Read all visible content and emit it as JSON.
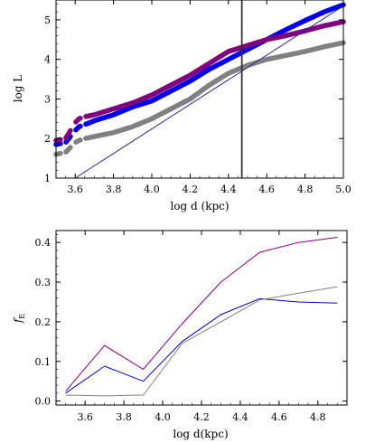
{
  "chart_data": [
    {
      "type": "scatter",
      "xlabel": "log d (kpc)",
      "ylabel": "log L",
      "xlim": [
        3.5,
        5.0
      ],
      "ylim": [
        1.0,
        5.5
      ],
      "xticks": [
        "3.6",
        "3.8",
        "4.0",
        "4.2",
        "4.4",
        "4.6",
        "4.8",
        "5.0"
      ],
      "yticks": [
        "1",
        "2",
        "3",
        "4",
        "5"
      ],
      "colors": {
        "purple": "#800080",
        "blue": "#0000ee",
        "gray": "#808080",
        "line": "#2a2a9a",
        "vline": "#333333"
      },
      "vertical_line_x": 4.47,
      "reference_line": {
        "x": [
          3.6,
          5.0
        ],
        "y": [
          1.0,
          5.35
        ]
      },
      "series": [
        {
          "color": "purple",
          "x": [
            3.5,
            3.55,
            3.6,
            3.62,
            3.65,
            3.7,
            3.8,
            3.9,
            4.0,
            4.1,
            4.2,
            4.3,
            4.4,
            4.5,
            4.6,
            4.7,
            4.8,
            4.9,
            5.0
          ],
          "y": [
            1.95,
            2.0,
            2.4,
            2.5,
            2.55,
            2.6,
            2.75,
            2.9,
            3.1,
            3.35,
            3.6,
            3.9,
            4.2,
            4.35,
            4.5,
            4.6,
            4.72,
            4.85,
            4.95
          ]
        },
        {
          "color": "blue",
          "x": [
            3.5,
            3.55,
            3.6,
            3.62,
            3.65,
            3.7,
            3.8,
            3.9,
            4.0,
            4.1,
            4.2,
            4.3,
            4.4,
            4.5,
            4.6,
            4.7,
            4.8,
            4.9,
            5.0
          ],
          "y": [
            1.85,
            1.9,
            2.2,
            2.3,
            2.35,
            2.45,
            2.6,
            2.8,
            2.95,
            3.2,
            3.45,
            3.75,
            4.0,
            4.25,
            4.5,
            4.75,
            4.98,
            5.2,
            5.38
          ]
        },
        {
          "color": "gray",
          "x": [
            3.5,
            3.55,
            3.6,
            3.62,
            3.65,
            3.7,
            3.8,
            3.9,
            4.0,
            4.1,
            4.2,
            4.3,
            4.4,
            4.5,
            4.6,
            4.7,
            4.8,
            4.9,
            5.0
          ],
          "y": [
            1.6,
            1.65,
            1.9,
            1.95,
            2.0,
            2.05,
            2.15,
            2.3,
            2.5,
            2.75,
            3.0,
            3.35,
            3.65,
            3.85,
            4.0,
            4.1,
            4.2,
            4.32,
            4.42
          ]
        }
      ]
    },
    {
      "type": "line",
      "xlabel": "log d(kpc)",
      "ylabel": "f",
      "ylabel_subscript": "E",
      "xlim": [
        3.45,
        4.95
      ],
      "ylim": [
        -0.01,
        0.43
      ],
      "xticks": [
        "3.6",
        "3.8",
        "4.0",
        "4.2",
        "4.4",
        "4.6",
        "4.8"
      ],
      "yticks": [
        "0.0",
        "0.1",
        "0.2",
        "0.3",
        "0.4"
      ],
      "x": [
        3.5,
        3.7,
        3.9,
        4.1,
        4.3,
        4.5,
        4.7,
        4.9
      ],
      "series": [
        {
          "color": "#800080",
          "values": [
            0.025,
            0.14,
            0.08,
            0.195,
            0.3,
            0.375,
            0.4,
            0.413
          ]
        },
        {
          "color": "#0000cc",
          "values": [
            0.02,
            0.088,
            0.05,
            0.15,
            0.218,
            0.258,
            0.25,
            0.247
          ]
        },
        {
          "color": "#808080",
          "values": [
            0.015,
            0.013,
            0.015,
            0.145,
            0.2,
            0.255,
            0.272,
            0.288
          ]
        }
      ]
    }
  ]
}
